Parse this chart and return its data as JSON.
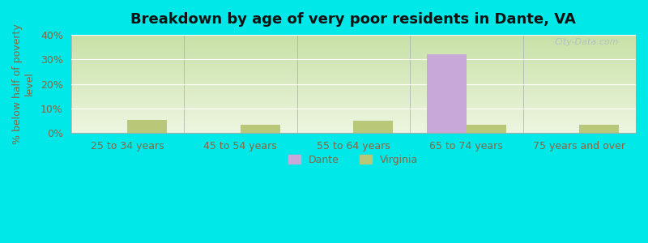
{
  "title": "Breakdown by age of very poor residents in Dante, VA",
  "ylabel": "% below half of poverty\nlevel",
  "categories": [
    "25 to 34 years",
    "45 to 54 years",
    "55 to 64 years",
    "65 to 74 years",
    "75 years and over"
  ],
  "dante_values": [
    0,
    0,
    0,
    32.0,
    0
  ],
  "virginia_values": [
    5.5,
    3.5,
    5.0,
    3.5,
    3.5
  ],
  "dante_color": "#c8a8d8",
  "virginia_color": "#b8c878",
  "outer_bg_color": "#00e8e8",
  "ylim": [
    0,
    40
  ],
  "yticks": [
    0,
    10,
    20,
    30,
    40
  ],
  "ytick_labels": [
    "0%",
    "10%",
    "20%",
    "30%",
    "40%"
  ],
  "bar_width": 0.35,
  "legend_labels": [
    "Dante",
    "Virginia"
  ],
  "title_fontsize": 13,
  "axis_fontsize": 9,
  "tick_fontsize": 9,
  "plot_bg_top": "#e8f0e0",
  "plot_bg_bottom": "#c8dca8",
  "watermark_text": "City-Data.com",
  "tick_color": "#886644",
  "label_color": "#886644"
}
